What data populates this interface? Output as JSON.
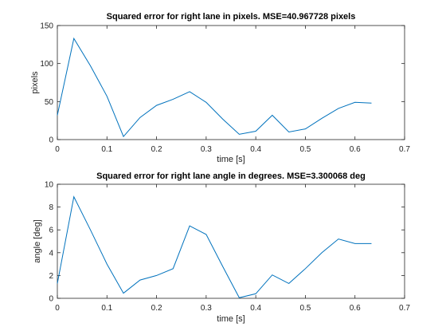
{
  "chart_data": [
    {
      "type": "line",
      "title": "Squared error for right lane in pixels. MSE=40.967728 pixels",
      "xlabel": "time [s]",
      "ylabel": "pixels",
      "xlim": [
        0,
        0.7
      ],
      "ylim": [
        0,
        150
      ],
      "xticks": [
        0,
        0.1,
        0.2,
        0.3,
        0.4,
        0.5,
        0.6,
        0.7
      ],
      "yticks": [
        0,
        50,
        100,
        150
      ],
      "grid": false,
      "line_color": "#0072bd",
      "x": [
        0,
        0.0333,
        0.0667,
        0.1,
        0.1333,
        0.1667,
        0.2,
        0.2333,
        0.2667,
        0.3,
        0.3333,
        0.3667,
        0.4,
        0.4333,
        0.4667,
        0.5,
        0.5333,
        0.5667,
        0.6,
        0.6333
      ],
      "values": [
        32,
        133,
        97,
        57,
        4,
        29,
        45,
        53,
        63,
        49,
        27,
        7,
        11,
        32,
        10,
        14,
        28,
        41,
        49,
        48
      ]
    },
    {
      "type": "line",
      "title": "Squared error for right lane angle in degrees. MSE=3.300068 deg",
      "xlabel": "time [s]",
      "ylabel": "angle [deg]",
      "xlim": [
        0,
        0.7
      ],
      "ylim": [
        0,
        10
      ],
      "xticks": [
        0,
        0.1,
        0.2,
        0.3,
        0.4,
        0.5,
        0.6,
        0.7
      ],
      "yticks": [
        0,
        2,
        4,
        6,
        8,
        10
      ],
      "grid": false,
      "line_color": "#0072bd",
      "x": [
        0,
        0.0333,
        0.0667,
        0.1,
        0.1333,
        0.1667,
        0.2,
        0.2333,
        0.2667,
        0.3,
        0.3333,
        0.3667,
        0.4,
        0.4333,
        0.4667,
        0.5,
        0.5333,
        0.5667,
        0.6,
        0.6333
      ],
      "values": [
        1.3,
        8.9,
        6.0,
        3.0,
        0.45,
        1.6,
        2.0,
        2.6,
        6.35,
        5.6,
        2.8,
        0.05,
        0.4,
        2.05,
        1.3,
        2.6,
        4.0,
        5.2,
        4.8,
        4.8
      ]
    }
  ]
}
